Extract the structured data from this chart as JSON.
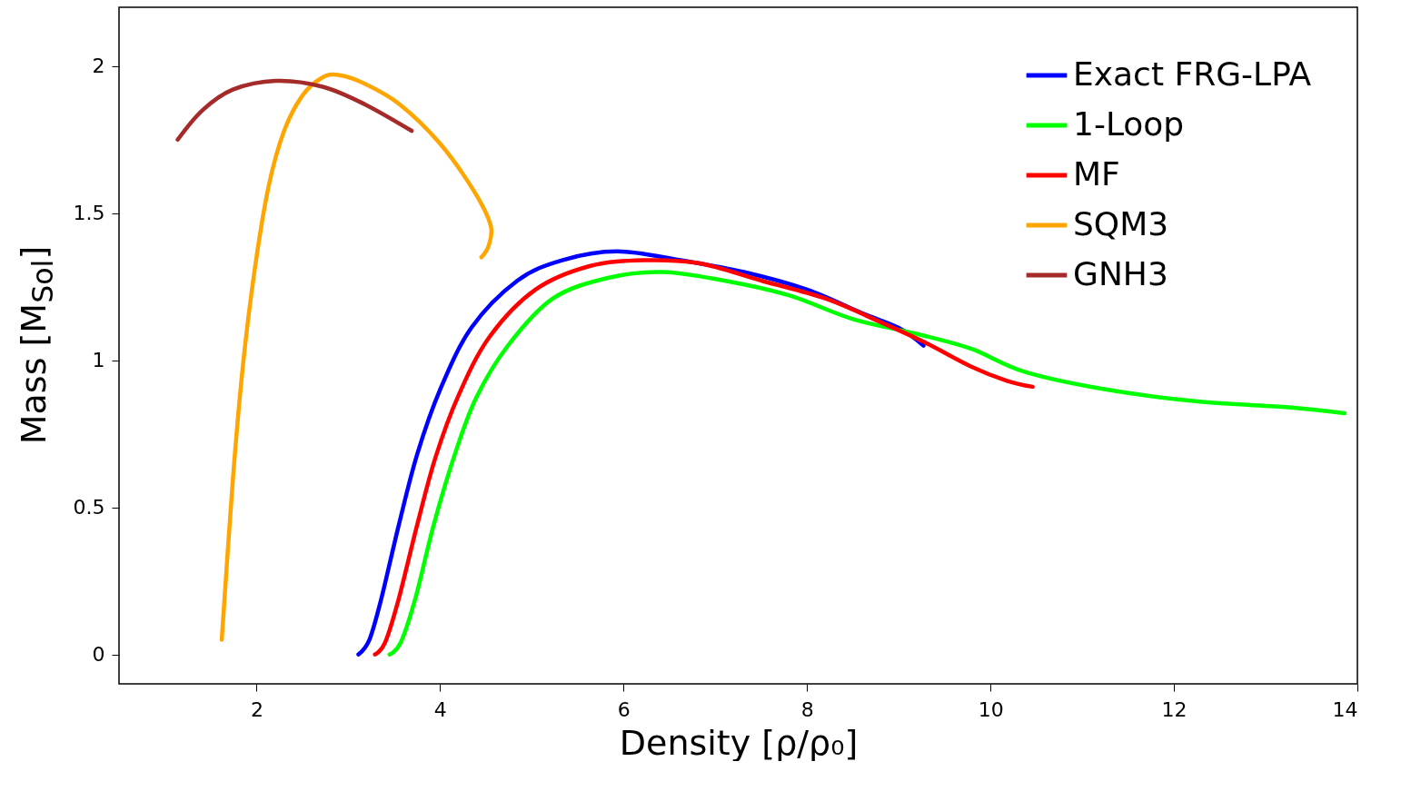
{
  "chart_data": {
    "type": "line",
    "xlabel": "Density [ρ/ρ₀]",
    "ylabel": "Mass [M$_{Sol}$]",
    "xlim": [
      0.5,
      14
    ],
    "ylim": [
      -0.1,
      2.2
    ],
    "xticks": [
      2,
      4,
      6,
      8,
      10,
      12,
      14
    ],
    "yticks": [
      0,
      0.5,
      1,
      1.5,
      2
    ],
    "grid": false,
    "legend": "top right",
    "marker": "none",
    "line_style": "solid",
    "series": [
      {
        "name": "Exact FRG-LPA",
        "color": "#0000ff",
        "x": [
          3.11,
          3.23,
          3.36,
          3.55,
          3.75,
          4.0,
          4.34,
          4.84,
          5.33,
          5.93,
          6.62,
          7.31,
          8.0,
          8.6,
          9.0,
          9.27
        ],
        "values": [
          0,
          0.05,
          0.19,
          0.44,
          0.68,
          0.9,
          1.11,
          1.27,
          1.34,
          1.37,
          1.34,
          1.3,
          1.24,
          1.16,
          1.11,
          1.05
        ]
      },
      {
        "name": "1-Loop",
        "color": "#00ff00",
        "x": [
          3.45,
          3.57,
          3.73,
          3.93,
          4.15,
          4.39,
          4.74,
          5.23,
          5.83,
          6.42,
          7.11,
          7.81,
          8.5,
          9.19,
          9.78,
          10.38,
          11.27,
          12.26,
          13.25,
          13.86
        ],
        "values": [
          0,
          0.04,
          0.19,
          0.44,
          0.67,
          0.87,
          1.05,
          1.21,
          1.28,
          1.3,
          1.27,
          1.22,
          1.14,
          1.09,
          1.04,
          0.96,
          0.9,
          0.86,
          0.84,
          0.82
        ]
      },
      {
        "name": "MF",
        "color": "#ff0000",
        "x": [
          3.29,
          3.4,
          3.55,
          3.75,
          3.95,
          4.2,
          4.54,
          5.04,
          5.63,
          6.22,
          6.82,
          7.51,
          8.2,
          8.8,
          9.29,
          9.78,
          10.18,
          10.46
        ],
        "values": [
          0,
          0.04,
          0.19,
          0.44,
          0.67,
          0.88,
          1.08,
          1.24,
          1.32,
          1.34,
          1.33,
          1.27,
          1.21,
          1.13,
          1.06,
          0.98,
          0.93,
          0.91
        ]
      },
      {
        "name": "SQM3",
        "color": "#ffa500",
        "x": [
          1.62,
          1.74,
          1.85,
          1.98,
          2.13,
          2.3,
          2.5,
          2.71,
          2.89,
          3.18,
          3.56,
          3.99,
          4.36,
          4.55,
          4.53,
          4.45
        ],
        "values": [
          0.05,
          0.59,
          0.98,
          1.31,
          1.59,
          1.78,
          1.9,
          1.96,
          1.97,
          1.94,
          1.87,
          1.74,
          1.58,
          1.46,
          1.39,
          1.35
        ]
      },
      {
        "name": "GNH3",
        "color": "#a52a2a",
        "x": [
          1.14,
          1.41,
          1.74,
          2.21,
          2.72,
          3.18,
          3.69
        ],
        "values": [
          1.75,
          1.85,
          1.92,
          1.95,
          1.93,
          1.87,
          1.78
        ]
      }
    ]
  }
}
